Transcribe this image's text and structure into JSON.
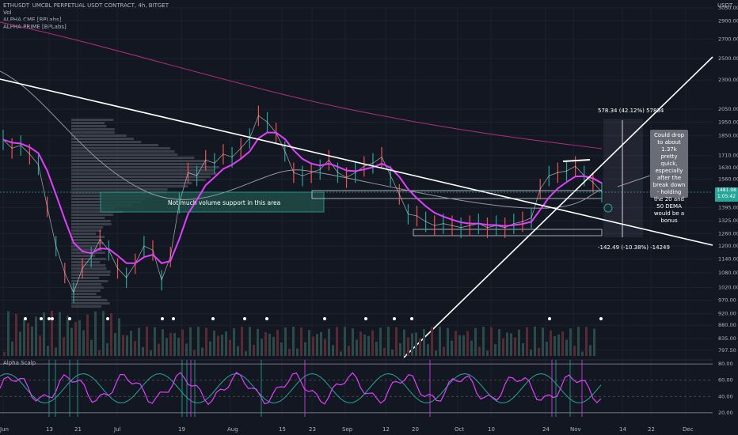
{
  "header": {
    "symbol_line": "ETHUSDT_UMCBL PERPETUAL USDT CONTRACT, 4h, BITGET",
    "indicators": [
      "Vol",
      "ALPHA CME [BPLabs]",
      "ALPHA PRIME [BPLabs]"
    ]
  },
  "currency": "USDT",
  "price_tag": {
    "line1": "1481.98",
    "line2": "1:05:42"
  },
  "annotations": {
    "volume_zone": "Not much volume support in this area",
    "upper_range": "578.34 (42.12%) 57834",
    "lower_range": "-142.49 (-10.38%) -14249",
    "note": "Could drop to about 1.37k pretty quick, especially after the break down - holding the 20 and 50 DEMA would be a bonus"
  },
  "scalp_pane": {
    "title": "Alpha Scalp",
    "ticks": [
      "80.00",
      "60.00",
      "40.00",
      "20.00"
    ]
  },
  "colors": {
    "bg": "#131722",
    "accent_teal": "#26a69a",
    "magenta": "#e040fb",
    "red": "#ef5350"
  },
  "chart_data": {
    "type": "line",
    "title": "ETHUSDT_UMCBL PERPETUAL USDT CONTRACT, 4h, BITGET",
    "y_scale": "log",
    "ylim": [
      780,
      3050
    ],
    "y_ticks": [
      "3050.00",
      "2900.00",
      "2700.00",
      "2500.00",
      "2300.00",
      "2050.00",
      "1950.00",
      "1850.00",
      "1710.00",
      "1630.00",
      "1560.00",
      "1395.00",
      "1325.00",
      "1260.00",
      "1200.00",
      "1140.00",
      "1080.00",
      "1020.00",
      "970.00",
      "920.00",
      "880.00",
      "835.00",
      "797.50"
    ],
    "x_ticks": [
      "Jun",
      "13",
      "21",
      "Jul",
      "19",
      "Aug",
      "15",
      "23",
      "Sep",
      "12",
      "20",
      "Oct",
      "10",
      "24",
      "Nov",
      "14",
      "22",
      "Dec"
    ],
    "series": [
      {
        "name": "ETHUSDT",
        "values": [
          1820,
          1760,
          1780,
          1720,
          1650,
          1400,
          1200,
          1080,
          1000,
          1100,
          1150,
          1230,
          1180,
          1100,
          1060,
          1120,
          1200,
          1180,
          1050,
          1150,
          1420,
          1600,
          1580,
          1680,
          1660,
          1720,
          1700,
          1760,
          1830,
          2000,
          1950,
          1870,
          1740,
          1600,
          1580,
          1600,
          1620,
          1680,
          1600,
          1570,
          1600,
          1640,
          1660,
          1700,
          1580,
          1470,
          1360,
          1350,
          1320,
          1300,
          1310,
          1300,
          1290,
          1300,
          1310,
          1290,
          1300,
          1290,
          1310,
          1320,
          1340,
          1500,
          1580,
          1600,
          1610,
          1640,
          1580,
          1540,
          1482
        ]
      }
    ]
  }
}
